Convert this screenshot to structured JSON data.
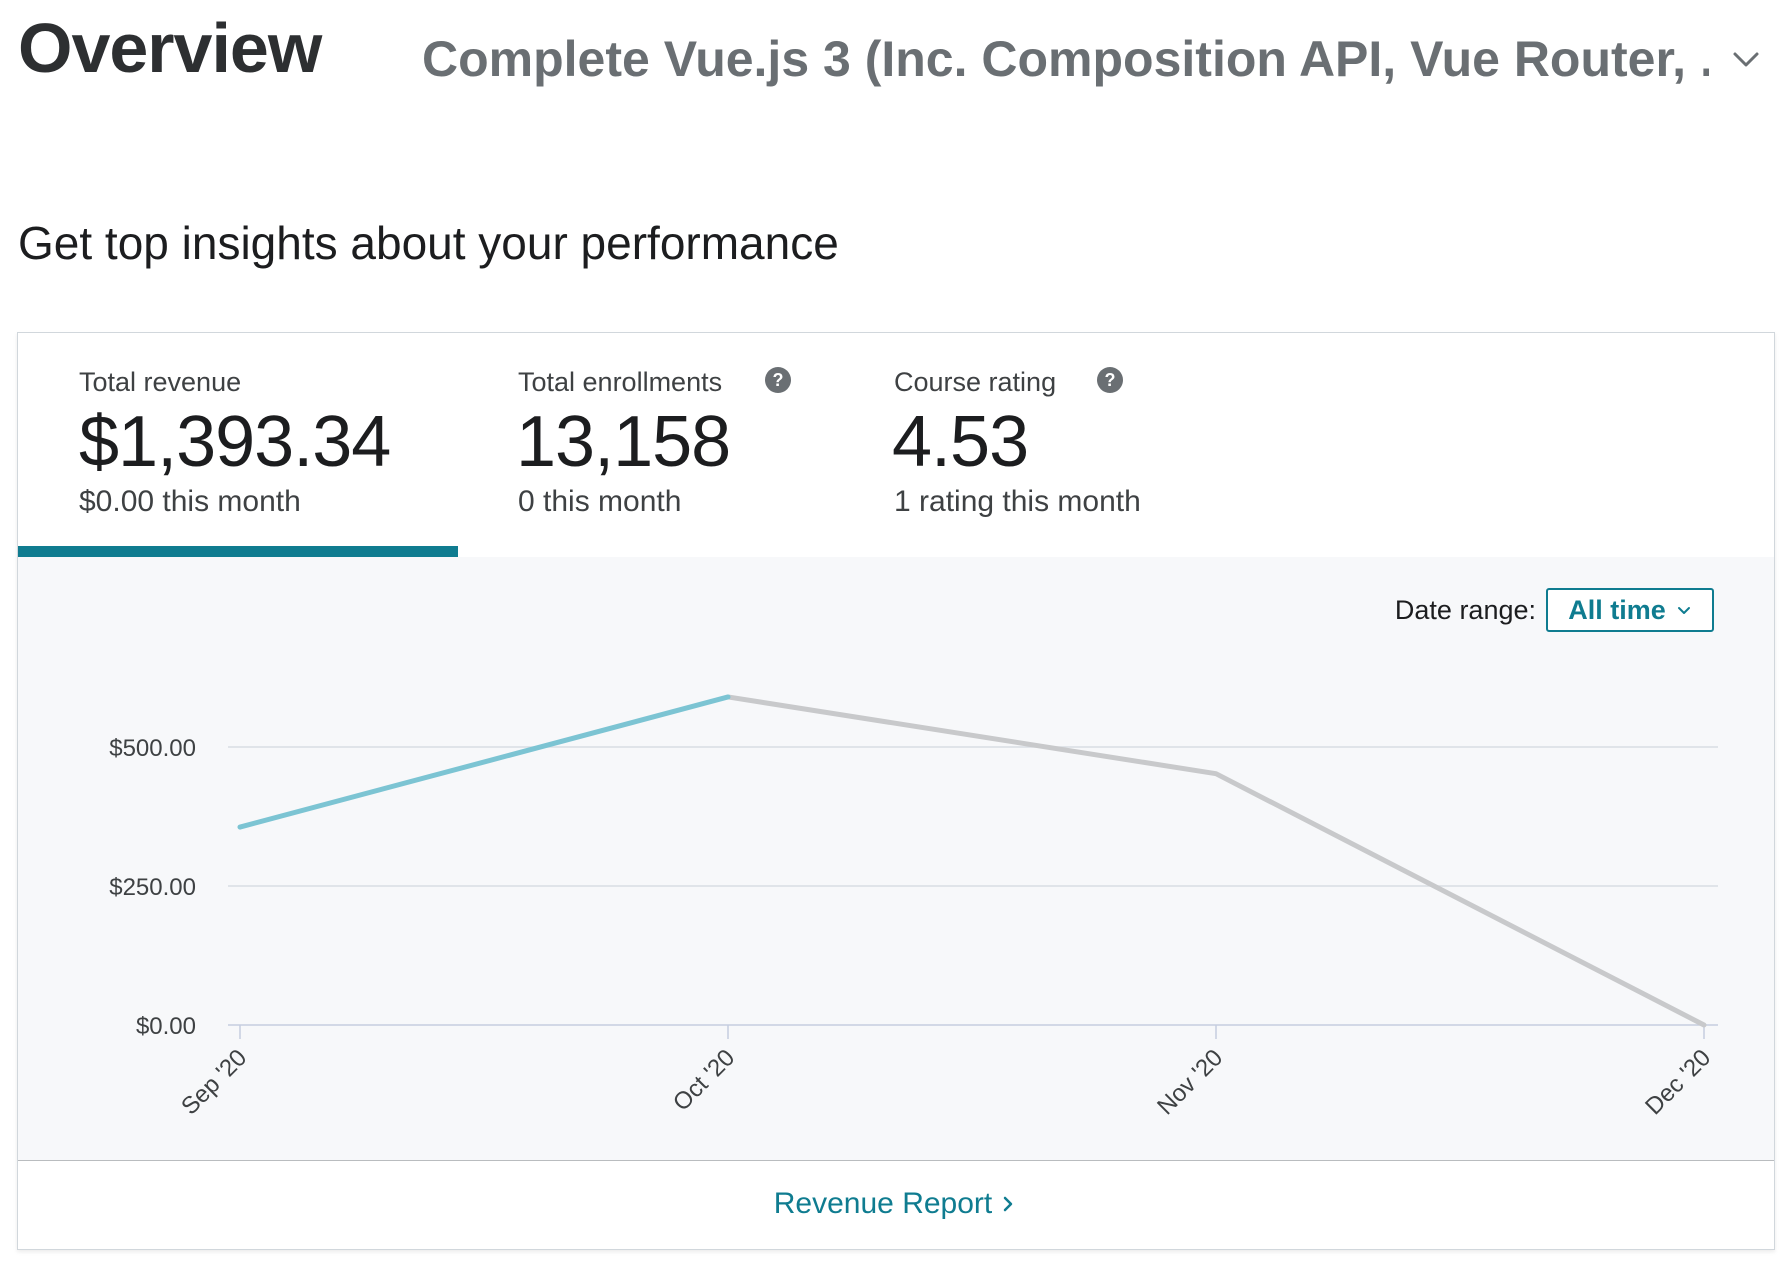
{
  "header": {
    "title": "Overview",
    "course_select": "Complete Vue.js 3 (Inc. Composition API, Vue Router, ..."
  },
  "subtitle": "Get top insights about your performance",
  "metrics": [
    {
      "label": "Total revenue",
      "value": "$1,393.34",
      "sub": "$0.00 this month",
      "has_help": false,
      "active": true
    },
    {
      "label": "Total enrollments",
      "value": "13,158",
      "sub": "0 this month",
      "has_help": true,
      "active": false
    },
    {
      "label": "Course rating",
      "value": "4.53",
      "sub": "1 rating this month",
      "has_help": true,
      "active": false
    }
  ],
  "date_range": {
    "label": "Date range:",
    "value": "All time"
  },
  "footer": {
    "link_label": "Revenue Report"
  },
  "colors": {
    "accent": "#0f7c90",
    "active_line": "#7cc4d3",
    "inactive_line": "#c8c9cb",
    "grid": "#d9dde3"
  },
  "chart_data": {
    "type": "line",
    "x": [
      "Sep '20",
      "Oct '20",
      "Nov '20",
      "Dec '20"
    ],
    "series": [
      {
        "values": [
          356,
          590,
          452,
          0
        ]
      }
    ],
    "highlighted_range": [
      0,
      1
    ],
    "yticks": [
      "$0.00",
      "$250.00",
      "$500.00"
    ],
    "ytick_values": [
      0,
      250,
      500
    ],
    "ylim": [
      0,
      600
    ],
    "grid": true
  }
}
